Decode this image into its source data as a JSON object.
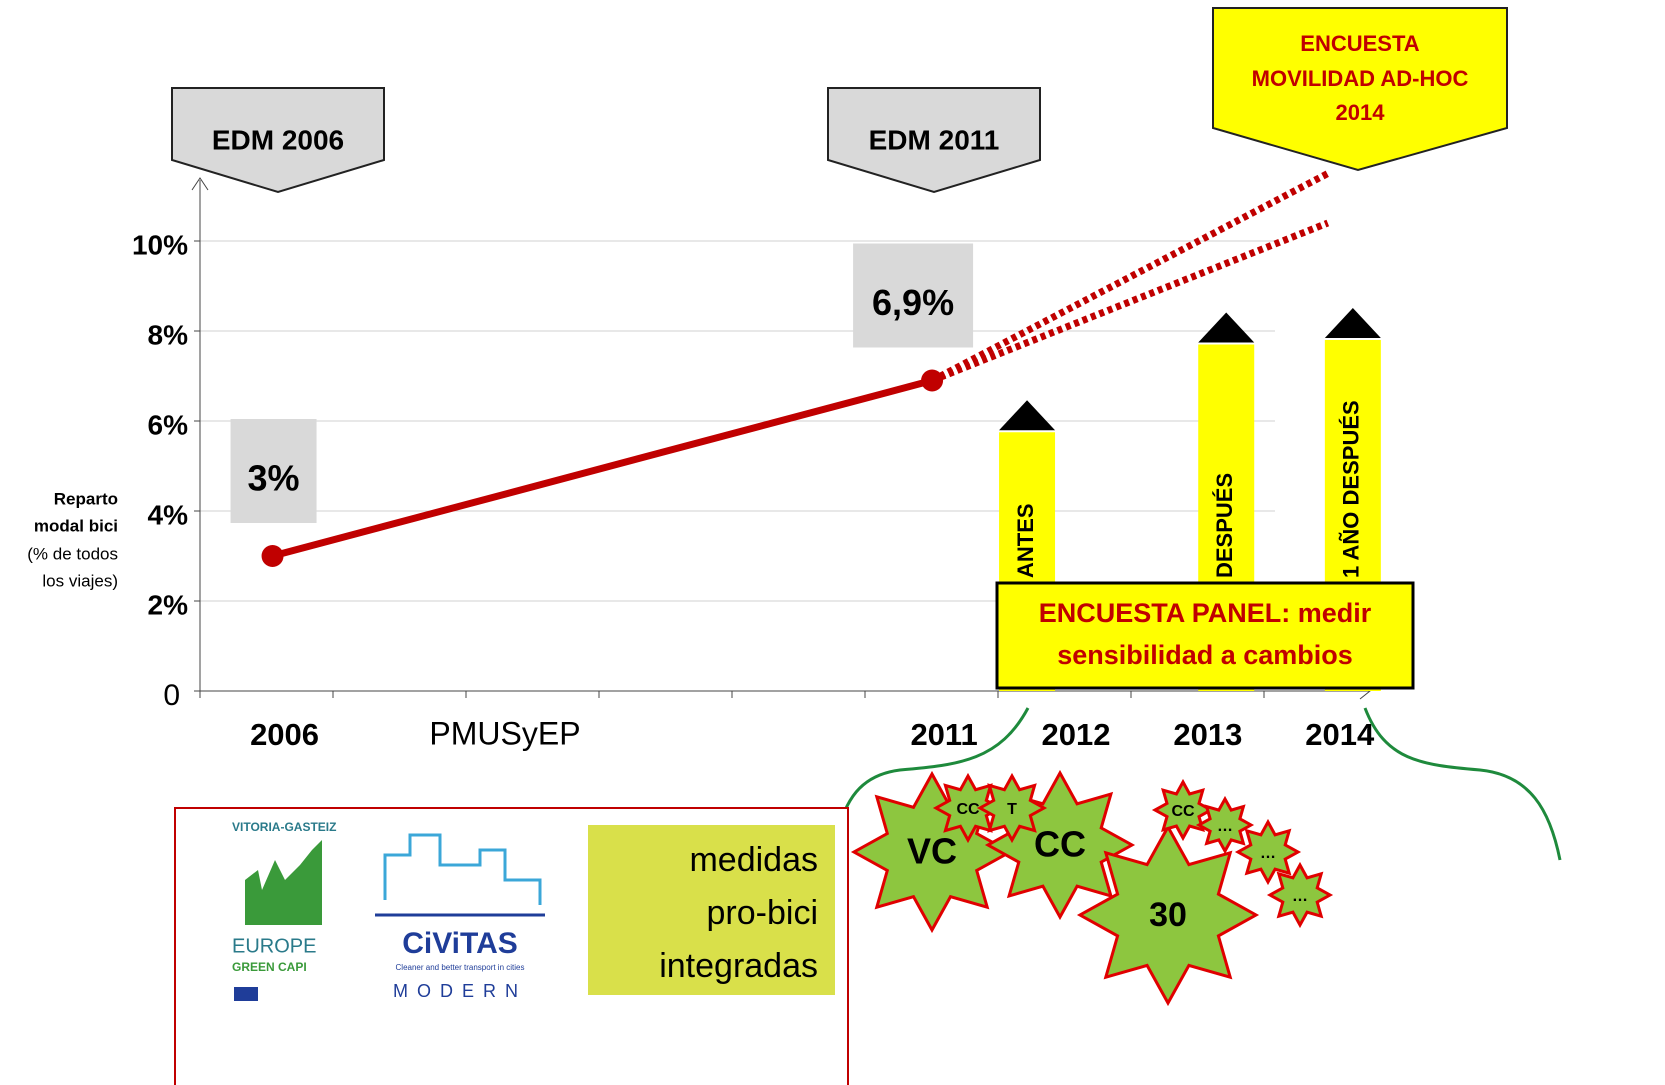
{
  "chart_data": {
    "type": "line",
    "y_label": [
      "Reparto",
      "modal bici"
    ],
    "y_label_note": [
      "(% de todos",
      "los viajes)"
    ],
    "x": [
      2006,
      2011
    ],
    "series": [
      {
        "color": "#c00000",
        "values": [
          3,
          6.9
        ],
        "value_labels": [
          "3%",
          "6,9%"
        ]
      }
    ],
    "xlim": [
      2005.45,
      2014.32
    ],
    "xticks": [
      2006,
      2011,
      2012,
      2013,
      2014
    ],
    "ylim": [
      0,
      11.4
    ],
    "yticks": [
      0,
      {
        "value": 2,
        "label": "2%"
      },
      {
        "value": 4,
        "label": "4%"
      },
      {
        "value": 6,
        "label": "6%"
      },
      {
        "value": 8,
        "label": "8%"
      },
      {
        "value": 10,
        "label": "10%"
      }
    ],
    "grid": true,
    "projections": [
      {
        "x": [
          2011,
          2014
        ],
        "values": [
          6.9,
          11.5
        ]
      },
      {
        "x": [
          2011,
          2014
        ],
        "values": [
          6.9,
          10.4
        ]
      }
    ],
    "bars": {
      "x": [
        2011.72,
        2013.23,
        2014.19
      ],
      "values": [
        5.75,
        7.7,
        7.8
      ],
      "labels": [
        "ANTES",
        "DESPUÉS",
        "1 AÑO DESPUÉS"
      ],
      "color": "#ffff00"
    },
    "annotations": {
      "period": "PMUSyEP",
      "edm_2006": "EDM 2006",
      "edm_2011": "EDM 2011",
      "adhoc": [
        "ENCUESTA",
        "MOVILIDAD AD-HOC",
        "2014"
      ],
      "panel": [
        "ENCUESTA PANEL: medir",
        "sensibilidad a cambios"
      ]
    }
  },
  "stars": [
    "VC",
    "CC",
    "T",
    "CC",
    "30",
    "CC",
    "…",
    "…",
    "…"
  ],
  "footer": {
    "logo_1": [
      "VITORIA-GASTEIZ",
      "EUROPE",
      "GREEN CAPI"
    ],
    "logo_2": [
      "CiViTAS",
      "Cleaner and better transport in cities",
      "MODERN"
    ],
    "note": [
      "medidas",
      "pro-bici",
      "integradas"
    ]
  }
}
